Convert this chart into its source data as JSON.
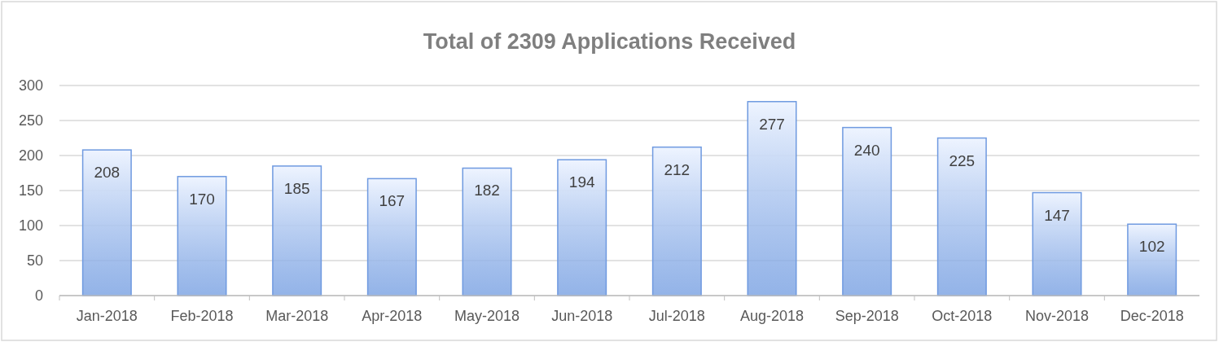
{
  "chart_data": {
    "type": "bar",
    "title": "Total of 2309 Applications Received",
    "categories": [
      "Jan-2018",
      "Feb-2018",
      "Mar-2018",
      "Apr-2018",
      "May-2018",
      "Jun-2018",
      "Jul-2018",
      "Aug-2018",
      "Sep-2018",
      "Oct-2018",
      "Nov-2018",
      "Dec-2018"
    ],
    "values": [
      208,
      170,
      185,
      167,
      182,
      194,
      212,
      277,
      240,
      225,
      147,
      102
    ],
    "color": "#6f9ae0",
    "ylim": [
      0,
      300
    ],
    "yticks": [
      0,
      50,
      100,
      150,
      200,
      250,
      300
    ],
    "grid": "y",
    "data_labels": true
  }
}
